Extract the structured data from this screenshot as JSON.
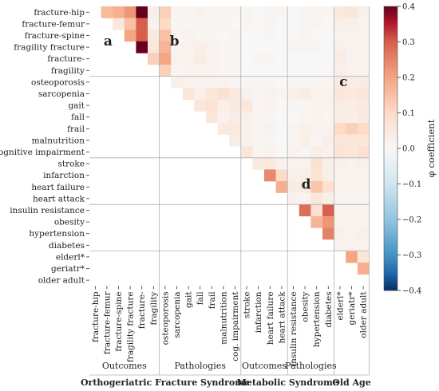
{
  "chart_data": {
    "type": "heatmap",
    "row_labels": [
      "fracture-hip",
      "fracture-femur",
      "fracture-spine",
      "fragility fracture",
      "fracture-",
      "fragility",
      "osteoporosis",
      "sarcopenia",
      "gait",
      "fall",
      "frail",
      "malnutrition",
      "cognitive impairment",
      "stroke",
      "infarction",
      "heart failure",
      "heart attack",
      "insulin resistance",
      "obesity",
      "hypertension",
      "diabetes",
      "elderl*",
      "geriatr*",
      "older adult"
    ],
    "col_labels": [
      "fracture-hip",
      "fracture-femur",
      "fracture-spine",
      "fragility fracture",
      "fracture-",
      "fragility",
      "osteoporosis",
      "sarcopenia",
      "gait",
      "fall",
      "frail",
      "malnutrition",
      "cog. impairment",
      "stroke",
      "infarction",
      "heart failure",
      "heart attack",
      "insulin resistance",
      "obesity",
      "hypertension",
      "diabetes",
      "elderl*",
      "geriatr*",
      "older adult"
    ],
    "groups": [
      6,
      13,
      17,
      21,
      24
    ],
    "colorbar": {
      "label": "φ coefficient",
      "min": -0.4,
      "max": 0.4,
      "ticks": [
        "0.4",
        "0.3",
        "0.2",
        "0.1",
        "0.0",
        "−0.1",
        "−0.2",
        "−0.3",
        "−0.4"
      ]
    },
    "colors": {
      "positive": "#67001f",
      "negative": "#053061",
      "neutral": "#f7f7f7"
    },
    "region_labels": [
      "a",
      "b",
      "c",
      "d"
    ],
    "group_labels": {
      "sub": [
        "Outcomes",
        "Pathologies",
        "Outcomes",
        "Pathologies"
      ],
      "main": [
        "Orthogeriatric Fracture Syndrome",
        "Metabolic Syndrome",
        "Old Age"
      ]
    },
    "cells": [
      [
        0,
        1,
        0.16
      ],
      [
        0,
        2,
        0.18
      ],
      [
        0,
        3,
        0.22
      ],
      [
        0,
        4,
        0.4
      ],
      [
        0,
        5,
        0.03
      ],
      [
        0,
        6,
        0.12
      ],
      [
        0,
        7,
        0.01
      ],
      [
        0,
        8,
        0.01
      ],
      [
        0,
        9,
        0.02
      ],
      [
        0,
        10,
        0.01
      ],
      [
        0,
        11,
        0.01
      ],
      [
        0,
        12,
        0.01
      ],
      [
        0,
        13,
        0.01
      ],
      [
        0,
        14,
        0.0
      ],
      [
        0,
        15,
        0.01
      ],
      [
        0,
        16,
        0.01
      ],
      [
        0,
        17,
        0.0
      ],
      [
        0,
        18,
        0.01
      ],
      [
        0,
        19,
        0.01
      ],
      [
        0,
        20,
        0.01
      ],
      [
        0,
        21,
        0.05
      ],
      [
        0,
        22,
        0.06
      ],
      [
        0,
        23,
        0.03
      ],
      [
        1,
        2,
        0.06
      ],
      [
        1,
        3,
        0.15
      ],
      [
        1,
        4,
        0.3
      ],
      [
        1,
        5,
        0.02
      ],
      [
        1,
        6,
        0.1
      ],
      [
        1,
        7,
        0.01
      ],
      [
        1,
        8,
        0.01
      ],
      [
        1,
        9,
        0.01
      ],
      [
        1,
        10,
        0.01
      ],
      [
        1,
        11,
        0.01
      ],
      [
        1,
        12,
        0.0
      ],
      [
        1,
        13,
        0.01
      ],
      [
        1,
        14,
        0.0
      ],
      [
        1,
        15,
        0.01
      ],
      [
        1,
        16,
        0.0
      ],
      [
        1,
        17,
        0.0
      ],
      [
        1,
        18,
        0.01
      ],
      [
        1,
        19,
        0.01
      ],
      [
        1,
        20,
        0.0
      ],
      [
        1,
        21,
        0.03
      ],
      [
        1,
        22,
        0.03
      ],
      [
        1,
        23,
        0.02
      ],
      [
        2,
        3,
        0.2
      ],
      [
        2,
        4,
        0.3
      ],
      [
        2,
        5,
        0.05
      ],
      [
        2,
        6,
        0.15
      ],
      [
        2,
        7,
        0.01
      ],
      [
        2,
        8,
        0.02
      ],
      [
        2,
        9,
        0.01
      ],
      [
        2,
        10,
        0.01
      ],
      [
        2,
        11,
        0.0
      ],
      [
        2,
        12,
        0.01
      ],
      [
        2,
        13,
        0.0
      ],
      [
        2,
        14,
        0.0
      ],
      [
        2,
        15,
        0.01
      ],
      [
        2,
        16,
        0.0
      ],
      [
        2,
        17,
        0.0
      ],
      [
        2,
        18,
        0.01
      ],
      [
        2,
        19,
        0.0
      ],
      [
        2,
        20,
        0.0
      ],
      [
        2,
        21,
        0.02
      ],
      [
        2,
        22,
        0.02
      ],
      [
        2,
        23,
        0.02
      ],
      [
        3,
        4,
        0.4
      ],
      [
        3,
        5,
        0.06
      ],
      [
        3,
        6,
        0.17
      ],
      [
        3,
        7,
        0.02
      ],
      [
        3,
        8,
        0.02
      ],
      [
        3,
        9,
        0.03
      ],
      [
        3,
        10,
        0.02
      ],
      [
        3,
        11,
        0.01
      ],
      [
        3,
        12,
        0.01
      ],
      [
        3,
        13,
        0.0
      ],
      [
        3,
        14,
        0.0
      ],
      [
        3,
        15,
        0.0
      ],
      [
        3,
        16,
        0.0
      ],
      [
        3,
        17,
        0.01
      ],
      [
        3,
        18,
        0.01
      ],
      [
        3,
        19,
        0.01
      ],
      [
        3,
        20,
        0.0
      ],
      [
        3,
        21,
        0.03
      ],
      [
        3,
        22,
        0.02
      ],
      [
        3,
        23,
        0.02
      ],
      [
        4,
        5,
        0.12
      ],
      [
        4,
        6,
        0.2
      ],
      [
        4,
        7,
        0.02
      ],
      [
        4,
        8,
        0.02
      ],
      [
        4,
        9,
        0.04
      ],
      [
        4,
        10,
        0.02
      ],
      [
        4,
        11,
        0.01
      ],
      [
        4,
        12,
        0.01
      ],
      [
        4,
        13,
        0.0
      ],
      [
        4,
        14,
        0.01
      ],
      [
        4,
        15,
        0.01
      ],
      [
        4,
        16,
        0.0
      ],
      [
        4,
        17,
        0.0
      ],
      [
        4,
        18,
        0.0
      ],
      [
        4,
        19,
        0.0
      ],
      [
        4,
        20,
        0.0
      ],
      [
        4,
        21,
        0.04
      ],
      [
        4,
        22,
        0.02
      ],
      [
        4,
        23,
        0.02
      ],
      [
        5,
        6,
        0.12
      ],
      [
        5,
        7,
        0.01
      ],
      [
        5,
        8,
        0.02
      ],
      [
        5,
        9,
        0.02
      ],
      [
        5,
        10,
        0.02
      ],
      [
        5,
        11,
        0.01
      ],
      [
        5,
        12,
        0.01
      ],
      [
        5,
        13,
        0.0
      ],
      [
        5,
        14,
        0.0
      ],
      [
        5,
        15,
        0.0
      ],
      [
        5,
        16,
        0.0
      ],
      [
        5,
        17,
        0.0
      ],
      [
        5,
        18,
        0.0
      ],
      [
        5,
        19,
        0.0
      ],
      [
        5,
        20,
        0.0
      ],
      [
        5,
        21,
        0.03
      ],
      [
        5,
        22,
        0.02
      ],
      [
        5,
        23,
        0.02
      ],
      [
        6,
        7,
        0.03
      ],
      [
        6,
        8,
        0.02
      ],
      [
        6,
        9,
        0.02
      ],
      [
        6,
        10,
        0.02
      ],
      [
        6,
        11,
        0.02
      ],
      [
        6,
        12,
        0.01
      ],
      [
        6,
        13,
        0.01
      ],
      [
        6,
        14,
        0.01
      ],
      [
        6,
        15,
        0.01
      ],
      [
        6,
        16,
        0.0
      ],
      [
        6,
        17,
        0.01
      ],
      [
        6,
        18,
        0.01
      ],
      [
        6,
        19,
        0.01
      ],
      [
        6,
        20,
        0.01
      ],
      [
        6,
        21,
        0.05
      ],
      [
        6,
        22,
        0.04
      ],
      [
        6,
        23,
        0.04
      ],
      [
        7,
        8,
        0.06
      ],
      [
        7,
        9,
        0.03
      ],
      [
        7,
        10,
        0.06
      ],
      [
        7,
        11,
        0.08
      ],
      [
        7,
        12,
        0.05
      ],
      [
        7,
        13,
        0.02
      ],
      [
        7,
        14,
        0.01
      ],
      [
        7,
        15,
        0.02
      ],
      [
        7,
        16,
        0.01
      ],
      [
        7,
        17,
        0.03
      ],
      [
        7,
        18,
        0.04
      ],
      [
        7,
        19,
        0.02
      ],
      [
        7,
        20,
        0.02
      ],
      [
        7,
        21,
        0.06
      ],
      [
        7,
        22,
        0.05
      ],
      [
        7,
        23,
        0.06
      ],
      [
        8,
        9,
        0.06
      ],
      [
        8,
        10,
        0.07
      ],
      [
        8,
        11,
        0.03
      ],
      [
        8,
        12,
        0.05
      ],
      [
        8,
        13,
        0.06
      ],
      [
        8,
        14,
        0.01
      ],
      [
        8,
        15,
        0.02
      ],
      [
        8,
        16,
        0.0
      ],
      [
        8,
        17,
        0.01
      ],
      [
        8,
        18,
        0.01
      ],
      [
        8,
        19,
        0.02
      ],
      [
        8,
        20,
        0.02
      ],
      [
        8,
        21,
        0.04
      ],
      [
        8,
        22,
        0.04
      ],
      [
        8,
        23,
        0.05
      ],
      [
        9,
        10,
        0.06
      ],
      [
        9,
        11,
        0.02
      ],
      [
        9,
        12,
        0.04
      ],
      [
        9,
        13,
        0.03
      ],
      [
        9,
        14,
        0.01
      ],
      [
        9,
        15,
        0.01
      ],
      [
        9,
        16,
        0.0
      ],
      [
        9,
        17,
        0.0
      ],
      [
        9,
        18,
        0.01
      ],
      [
        9,
        19,
        0.02
      ],
      [
        9,
        20,
        0.01
      ],
      [
        9,
        21,
        0.04
      ],
      [
        9,
        22,
        0.03
      ],
      [
        9,
        23,
        0.05
      ],
      [
        10,
        11,
        0.05
      ],
      [
        10,
        12,
        0.05
      ],
      [
        10,
        13,
        0.02
      ],
      [
        10,
        14,
        0.01
      ],
      [
        10,
        15,
        0.02
      ],
      [
        10,
        16,
        0.0
      ],
      [
        10,
        17,
        0.01
      ],
      [
        10,
        18,
        0.03
      ],
      [
        10,
        19,
        0.02
      ],
      [
        10,
        20,
        0.02
      ],
      [
        10,
        21,
        0.1
      ],
      [
        10,
        22,
        0.12
      ],
      [
        10,
        23,
        0.1
      ],
      [
        11,
        12,
        0.04
      ],
      [
        11,
        13,
        0.02
      ],
      [
        11,
        14,
        0.01
      ],
      [
        11,
        15,
        0.01
      ],
      [
        11,
        16,
        0.0
      ],
      [
        11,
        17,
        0.01
      ],
      [
        11,
        18,
        0.03
      ],
      [
        11,
        19,
        0.01
      ],
      [
        11,
        20,
        0.03
      ],
      [
        11,
        21,
        0.06
      ],
      [
        11,
        22,
        0.06
      ],
      [
        11,
        23,
        0.06
      ],
      [
        12,
        13,
        0.06
      ],
      [
        12,
        14,
        0.01
      ],
      [
        12,
        15,
        0.02
      ],
      [
        12,
        16,
        0.0
      ],
      [
        12,
        17,
        0.02
      ],
      [
        12,
        18,
        0.01
      ],
      [
        12,
        19,
        0.03
      ],
      [
        12,
        20,
        0.02
      ],
      [
        12,
        21,
        0.07
      ],
      [
        12,
        22,
        0.06
      ],
      [
        12,
        23,
        0.08
      ],
      [
        13,
        14,
        0.05
      ],
      [
        13,
        15,
        0.05
      ],
      [
        13,
        16,
        0.02
      ],
      [
        13,
        17,
        0.02
      ],
      [
        13,
        18,
        0.02
      ],
      [
        13,
        19,
        0.08
      ],
      [
        13,
        20,
        0.03
      ],
      [
        13,
        21,
        0.03
      ],
      [
        13,
        22,
        0.02
      ],
      [
        13,
        23,
        0.03
      ],
      [
        14,
        15,
        0.24
      ],
      [
        14,
        16,
        0.1
      ],
      [
        14,
        17,
        0.03
      ],
      [
        14,
        18,
        0.03
      ],
      [
        14,
        19,
        0.07
      ],
      [
        14,
        20,
        0.03
      ],
      [
        14,
        21,
        0.02
      ],
      [
        14,
        22,
        0.02
      ],
      [
        14,
        23,
        0.02
      ],
      [
        15,
        16,
        0.18
      ],
      [
        15,
        17,
        0.04
      ],
      [
        15,
        18,
        0.05
      ],
      [
        15,
        19,
        0.14
      ],
      [
        15,
        20,
        0.08
      ],
      [
        15,
        21,
        0.02
      ],
      [
        15,
        22,
        0.02
      ],
      [
        15,
        23,
        0.02
      ],
      [
        16,
        17,
        0.02
      ],
      [
        16,
        18,
        0.02
      ],
      [
        16,
        19,
        0.06
      ],
      [
        16,
        20,
        0.03
      ],
      [
        16,
        21,
        0.01
      ],
      [
        16,
        22,
        0.01
      ],
      [
        16,
        23,
        0.01
      ],
      [
        17,
        18,
        0.28
      ],
      [
        17,
        19,
        0.08
      ],
      [
        17,
        20,
        0.3
      ],
      [
        17,
        21,
        0.02
      ],
      [
        17,
        22,
        0.02
      ],
      [
        17,
        23,
        0.02
      ],
      [
        18,
        19,
        0.17
      ],
      [
        18,
        20,
        0.22
      ],
      [
        18,
        21,
        0.02
      ],
      [
        18,
        22,
        0.02
      ],
      [
        18,
        23,
        0.02
      ],
      [
        19,
        20,
        0.25
      ],
      [
        19,
        21,
        0.03
      ],
      [
        19,
        22,
        0.02
      ],
      [
        19,
        23,
        0.03
      ],
      [
        20,
        21,
        0.02
      ],
      [
        20,
        22,
        0.02
      ],
      [
        20,
        23,
        0.02
      ],
      [
        21,
        22,
        0.2
      ],
      [
        21,
        23,
        0.06
      ],
      [
        22,
        23,
        0.18
      ]
    ]
  }
}
